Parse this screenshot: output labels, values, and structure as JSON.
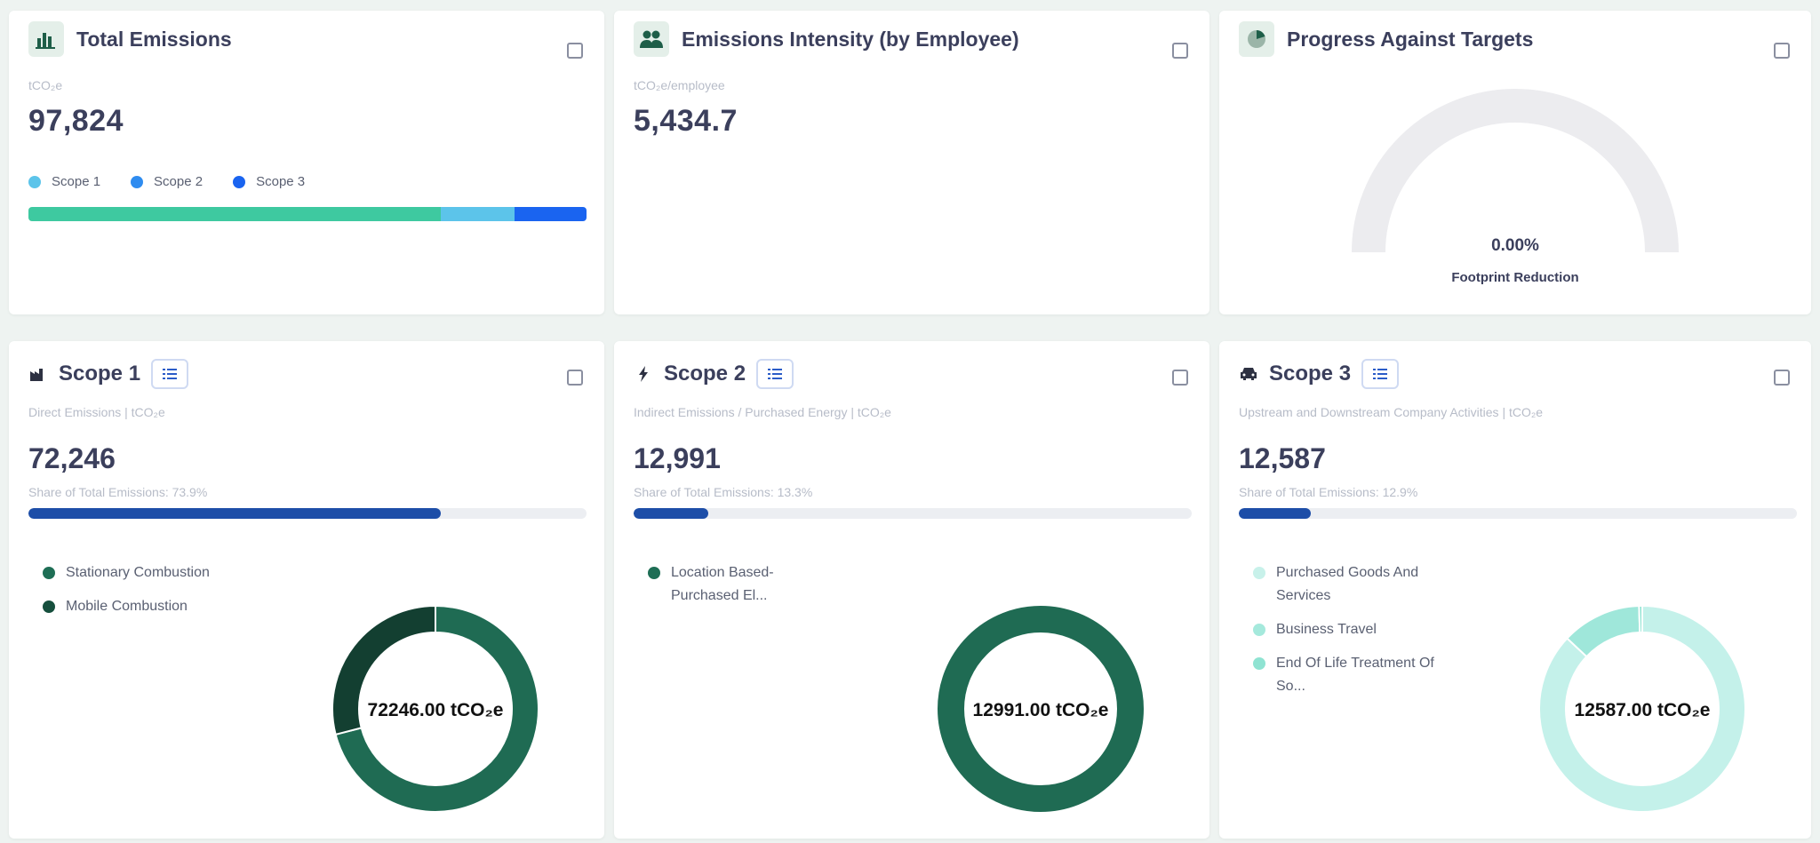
{
  "total_emissions": {
    "title": "Total Emissions",
    "unit": "tCO₂e",
    "value": "97,824",
    "legend": [
      {
        "label": "Scope 1",
        "color": "#5cc4ea"
      },
      {
        "label": "Scope 2",
        "color": "#2f8cf0"
      },
      {
        "label": "Scope 3",
        "color": "#1a64f0"
      }
    ],
    "bar_colors": [
      "#3ec9a0",
      "#5cc4ea",
      "#1a64f0"
    ],
    "bar_shares": [
      73.9,
      13.3,
      12.9
    ]
  },
  "intensity": {
    "title": "Emissions Intensity (by Employee)",
    "unit": "tCO₂e/employee",
    "value": "5,434.7"
  },
  "targets": {
    "title": "Progress Against Targets",
    "value": "0.00%",
    "label": "Footprint Reduction",
    "progress_fraction": 0
  },
  "scope1": {
    "title": "Scope 1",
    "subtitle": "Direct Emissions | tCO₂e",
    "value": "72,246",
    "share_text": "Share of Total Emissions: 73.9%",
    "share_percent": 73.9,
    "legend": [
      {
        "label": "Stationary Combustion",
        "color": "#1e6e55"
      },
      {
        "label": "Mobile Combustion",
        "color": "#164f3d"
      }
    ],
    "donut_label": "72246.00 tCO₂e",
    "donut_colors": [
      "#1f6b53",
      "#133f31"
    ],
    "donut_fractions": [
      0.71,
      0.29
    ]
  },
  "scope2": {
    "title": "Scope 2",
    "subtitle": "Indirect Emissions / Purchased Energy | tCO₂e",
    "value": "12,991",
    "share_text": "Share of Total Emissions: 13.3%",
    "share_percent": 13.3,
    "legend": [
      {
        "label": "Location Based-Purchased El...",
        "color": "#1e6e55"
      }
    ],
    "donut_label": "12991.00 tCO₂e",
    "donut_colors": [
      "#1f6b53"
    ],
    "donut_fractions": [
      1.0
    ]
  },
  "scope3": {
    "title": "Scope 3",
    "subtitle": "Upstream and Downstream Company Activities | tCO₂e",
    "value": "12,587",
    "share_text": "Share of Total Emissions: 12.9%",
    "share_percent": 12.9,
    "legend": [
      {
        "label": "Purchased Goods And Services",
        "color": "#c8f1ea"
      },
      {
        "label": "Business Travel",
        "color": "#a5e9dc"
      },
      {
        "label": "End Of Life Treatment Of So...",
        "color": "#8fe3d2"
      }
    ],
    "donut_label": "12587.00 tCO₂e",
    "donut_colors": [
      "#c4f1ea",
      "#9fe7da",
      "#8fe3d2"
    ],
    "donut_fractions": [
      0.87,
      0.125,
      0.005
    ]
  }
}
